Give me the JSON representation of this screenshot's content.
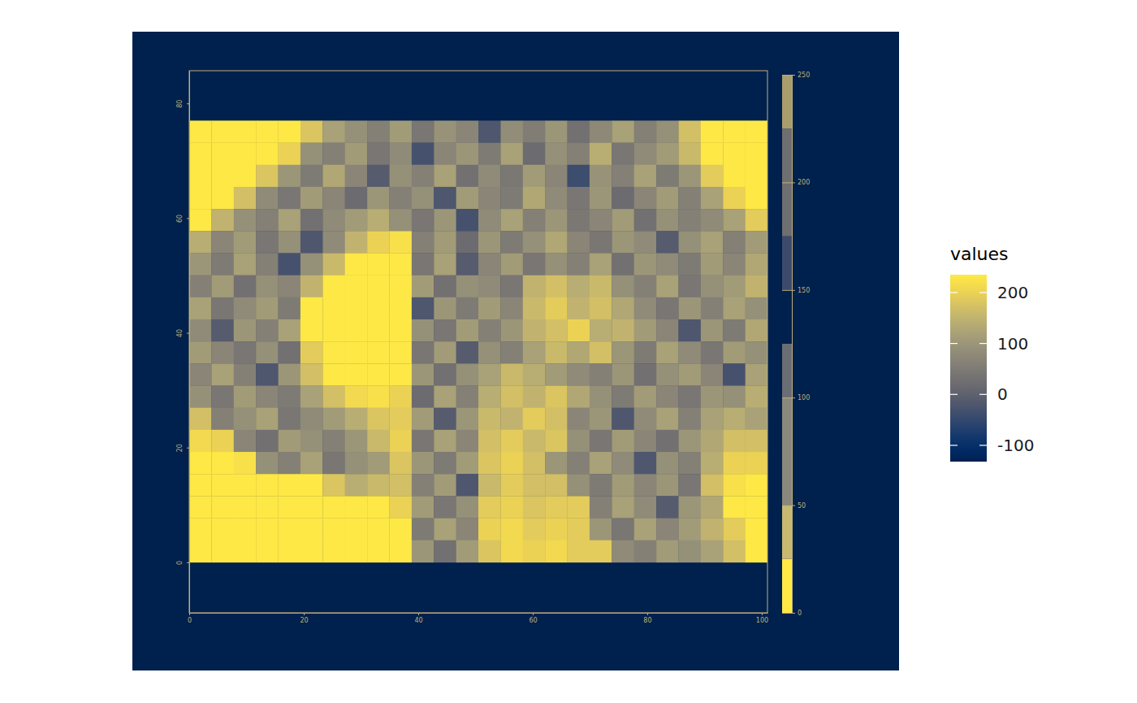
{
  "chart_data": {
    "type": "heatmap",
    "xlim": [
      0,
      101
    ],
    "ylim": [
      -8.8,
      85.7
    ],
    "xticks": [
      0,
      20,
      40,
      60,
      80,
      100
    ],
    "yticks": [
      0,
      20,
      40,
      60,
      80
    ],
    "x_bins": [
      0,
      3.88,
      7.77,
      11.65,
      15.54,
      19.42,
      23.31,
      27.19,
      31.08,
      34.96,
      38.85,
      42.73,
      46.62,
      50.5,
      54.38,
      58.27,
      62.15,
      66.04,
      69.92,
      73.81,
      77.69,
      81.58,
      85.46,
      89.35,
      93.23,
      97.12,
      101
    ],
    "y_bins": [
      0,
      3.85,
      7.7,
      11.55,
      15.4,
      19.25,
      23.1,
      26.95,
      30.8,
      34.65,
      38.5,
      42.35,
      46.2,
      50.05,
      53.9,
      57.75,
      61.6,
      65.45,
      69.3,
      73.15,
      77
    ],
    "cells": [
      [
        232,
        232,
        232,
        232,
        232,
        180,
        120,
        90,
        60,
        110,
        40,
        95,
        70,
        -20,
        85,
        55,
        100,
        30,
        75,
        120,
        60,
        90,
        170,
        232,
        232,
        232
      ],
      [
        232,
        232,
        232,
        232,
        200,
        90,
        60,
        110,
        40,
        80,
        -30,
        70,
        100,
        50,
        120,
        20,
        90,
        60,
        140,
        40,
        80,
        110,
        160,
        232,
        232,
        232
      ],
      [
        232,
        232,
        232,
        180,
        100,
        50,
        130,
        70,
        -10,
        90,
        60,
        120,
        30,
        80,
        45,
        110,
        70,
        -40,
        95,
        60,
        120,
        50,
        100,
        190,
        232,
        232
      ],
      [
        232,
        232,
        170,
        80,
        40,
        110,
        70,
        20,
        100,
        60,
        90,
        -20,
        110,
        70,
        50,
        130,
        80,
        40,
        100,
        20,
        70,
        110,
        60,
        120,
        200,
        232
      ],
      [
        232,
        150,
        90,
        60,
        120,
        30,
        80,
        110,
        140,
        90,
        40,
        100,
        -30,
        80,
        120,
        60,
        100,
        45,
        70,
        110,
        30,
        90,
        60,
        80,
        120,
        190
      ],
      [
        140,
        70,
        110,
        40,
        90,
        -20,
        80,
        150,
        200,
        220,
        60,
        110,
        20,
        100,
        50,
        90,
        130,
        70,
        40,
        100,
        80,
        -10,
        90,
        120,
        60,
        110
      ],
      [
        100,
        50,
        120,
        60,
        -30,
        90,
        160,
        232,
        232,
        232,
        40,
        120,
        -10,
        70,
        110,
        40,
        90,
        60,
        120,
        30,
        100,
        80,
        50,
        110,
        70,
        130
      ],
      [
        60,
        110,
        30,
        90,
        70,
        150,
        232,
        232,
        232,
        232,
        110,
        30,
        90,
        80,
        40,
        150,
        170,
        140,
        160,
        90,
        60,
        120,
        40,
        90,
        110,
        150
      ],
      [
        120,
        40,
        80,
        110,
        50,
        232,
        232,
        232,
        232,
        232,
        -20,
        100,
        50,
        110,
        70,
        160,
        190,
        150,
        170,
        130,
        80,
        40,
        100,
        60,
        120,
        90
      ],
      [
        80,
        -10,
        100,
        60,
        120,
        232,
        232,
        232,
        232,
        232,
        90,
        40,
        110,
        60,
        100,
        150,
        170,
        200,
        140,
        150,
        110,
        70,
        -20,
        100,
        50,
        130
      ],
      [
        110,
        70,
        40,
        90,
        30,
        190,
        232,
        232,
        232,
        232,
        40,
        110,
        -10,
        90,
        60,
        120,
        160,
        130,
        170,
        100,
        50,
        120,
        80,
        40,
        110,
        90
      ],
      [
        70,
        120,
        60,
        -20,
        100,
        170,
        232,
        232,
        232,
        232,
        100,
        30,
        90,
        120,
        160,
        140,
        110,
        80,
        60,
        100,
        30,
        90,
        110,
        70,
        -30,
        120
      ],
      [
        90,
        40,
        110,
        70,
        50,
        120,
        170,
        210,
        220,
        200,
        20,
        120,
        60,
        140,
        170,
        150,
        180,
        130,
        90,
        50,
        110,
        70,
        40,
        100,
        90,
        140
      ],
      [
        170,
        60,
        90,
        120,
        40,
        80,
        110,
        140,
        180,
        190,
        110,
        -10,
        100,
        160,
        150,
        190,
        170,
        70,
        100,
        -20,
        80,
        120,
        60,
        120,
        140,
        120
      ],
      [
        210,
        200,
        70,
        30,
        110,
        90,
        60,
        100,
        160,
        200,
        40,
        120,
        70,
        170,
        190,
        160,
        180,
        90,
        40,
        110,
        70,
        30,
        100,
        130,
        170,
        170
      ],
      [
        232,
        232,
        220,
        90,
        60,
        120,
        40,
        90,
        110,
        180,
        100,
        50,
        110,
        180,
        200,
        170,
        100,
        60,
        120,
        80,
        -20,
        90,
        60,
        140,
        200,
        200
      ],
      [
        232,
        232,
        232,
        232,
        232,
        232,
        180,
        140,
        160,
        170,
        60,
        110,
        -20,
        160,
        190,
        170,
        170,
        90,
        50,
        110,
        70,
        100,
        40,
        170,
        220,
        232
      ],
      [
        232,
        232,
        232,
        232,
        232,
        232,
        232,
        232,
        232,
        200,
        110,
        40,
        90,
        190,
        200,
        180,
        190,
        190,
        60,
        120,
        80,
        -10,
        100,
        130,
        232,
        232
      ],
      [
        232,
        232,
        232,
        232,
        232,
        232,
        232,
        232,
        232,
        232,
        50,
        120,
        70,
        200,
        210,
        190,
        200,
        190,
        100,
        40,
        120,
        70,
        110,
        150,
        190,
        232
      ],
      [
        232,
        232,
        232,
        232,
        232,
        232,
        232,
        232,
        232,
        232,
        100,
        30,
        110,
        180,
        210,
        200,
        210,
        190,
        190,
        80,
        60,
        110,
        90,
        120,
        170,
        232
      ]
    ],
    "colorbar": {
      "title": "values",
      "lim": [
        -132,
        235
      ],
      "ticks": [
        -100,
        0,
        100,
        200
      ]
    },
    "class_legend": {
      "lim": [
        0,
        250
      ],
      "ticks": [
        0,
        50,
        100,
        150,
        200,
        250
      ],
      "breaks": [
        0,
        25,
        50,
        100,
        125,
        150,
        175,
        225,
        250
      ],
      "colors": [
        "#ffe945",
        "#c9b870",
        "#8a877c",
        "#6b6d74",
        "#00204d",
        "#3e4a6b",
        "#6f6e70",
        "#a99d6b"
      ]
    }
  }
}
